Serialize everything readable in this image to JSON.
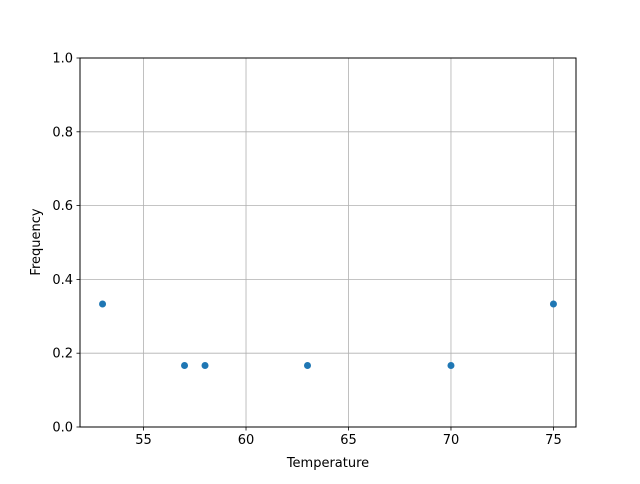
{
  "chart_data": {
    "type": "scatter",
    "title": "",
    "xlabel": "Temperature",
    "ylabel": "Frequency",
    "xlim": [
      51.9,
      76.1
    ],
    "ylim": [
      0,
      1
    ],
    "xticks": [
      55,
      60,
      65,
      70,
      75
    ],
    "yticks": [
      0.0,
      0.2,
      0.4,
      0.6,
      0.8,
      1.0
    ],
    "xtick_labels": [
      "55",
      "60",
      "65",
      "70",
      "75"
    ],
    "ytick_labels": [
      "0.0",
      "0.2",
      "0.4",
      "0.6",
      "0.8",
      "1.0"
    ],
    "grid": true,
    "x": [
      53,
      57,
      58,
      63,
      70,
      75
    ],
    "y": [
      0.3333,
      0.1667,
      0.1667,
      0.1667,
      0.1667,
      0.3333
    ],
    "color": "#1f77b4"
  }
}
